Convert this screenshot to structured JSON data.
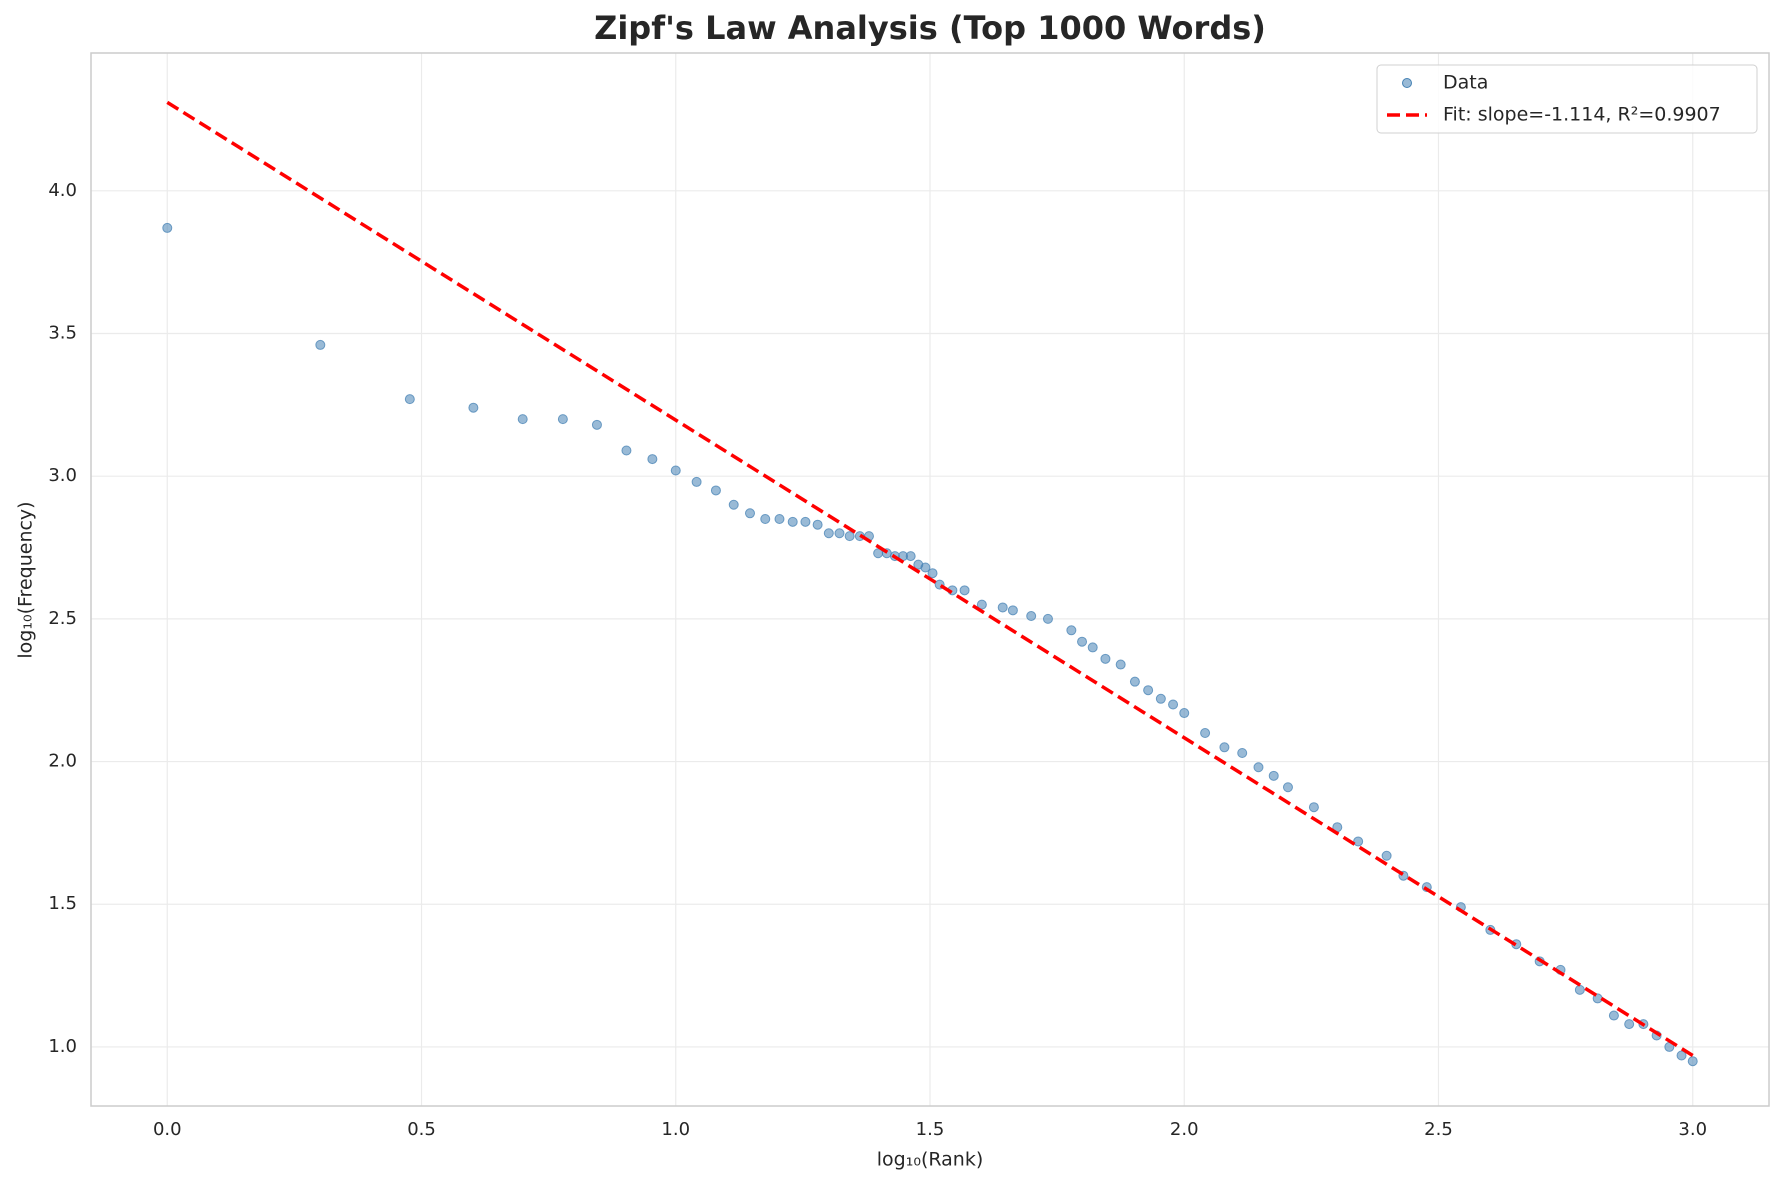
{
  "chart_data": {
    "type": "scatter",
    "title": "Zipf's Law Analysis (Top 1000 Words)",
    "x_label": "log₁₀(Rank)",
    "y_label": "log₁₀(Frequency)",
    "xlim": [
      -0.15,
      3.15
    ],
    "ylim": [
      0.793,
      4.483
    ],
    "xticks": [
      {
        "value": 0,
        "label": "0.0"
      },
      {
        "value": 0.5,
        "label": "0.5"
      },
      {
        "value": 1,
        "label": "1.0"
      },
      {
        "value": 1.5,
        "label": "1.5"
      },
      {
        "value": 2,
        "label": "2.0"
      },
      {
        "value": 2.5,
        "label": "2.5"
      },
      {
        "value": 3,
        "label": "3.0"
      }
    ],
    "yticks": [
      {
        "value": 1,
        "label": "1.0"
      },
      {
        "value": 1.5,
        "label": "1.5"
      },
      {
        "value": 2,
        "label": "2.0"
      },
      {
        "value": 2.5,
        "label": "2.5"
      },
      {
        "value": 3,
        "label": "3.0"
      },
      {
        "value": 3.5,
        "label": "3.5"
      },
      {
        "value": 4,
        "label": "4.0"
      }
    ],
    "grid": true,
    "legend": "upper right",
    "series": [
      {
        "name": "Data",
        "type": "scatter",
        "color": "#4682b4",
        "x": [
          0,
          0.301,
          0.477,
          0.602,
          0.699,
          0.778,
          0.845,
          0.903,
          0.954,
          1.0,
          1.041,
          1.079,
          1.114,
          1.146,
          1.176,
          1.204,
          1.23,
          1.255,
          1.279,
          1.301,
          1.322,
          1.342,
          1.362,
          1.38,
          1.398,
          1.415,
          1.431,
          1.447,
          1.462,
          1.477,
          1.491,
          1.505,
          1.519,
          1.544,
          1.568,
          1.602,
          1.643,
          1.663,
          1.699,
          1.732,
          1.778,
          1.799,
          1.82,
          1.845,
          1.875,
          1.903,
          1.929,
          1.954,
          1.978,
          2.0,
          2.041,
          2.079,
          2.114,
          2.146,
          2.176,
          2.204,
          2.255,
          2.301,
          2.342,
          2.398,
          2.431,
          2.477,
          2.544,
          2.602,
          2.653,
          2.699,
          2.74,
          2.778,
          2.813,
          2.845,
          2.875,
          2.903,
          2.929,
          2.954,
          2.978,
          3.0
        ],
        "values": [
          3.87,
          3.46,
          3.27,
          3.24,
          3.2,
          3.2,
          3.18,
          3.09,
          3.06,
          3.02,
          2.98,
          2.95,
          2.9,
          2.87,
          2.85,
          2.85,
          2.84,
          2.84,
          2.83,
          2.8,
          2.8,
          2.79,
          2.79,
          2.79,
          2.73,
          2.73,
          2.72,
          2.72,
          2.72,
          2.69,
          2.68,
          2.66,
          2.62,
          2.6,
          2.6,
          2.55,
          2.54,
          2.53,
          2.51,
          2.5,
          2.46,
          2.42,
          2.4,
          2.36,
          2.34,
          2.28,
          2.25,
          2.22,
          2.2,
          2.17,
          2.1,
          2.05,
          2.03,
          1.98,
          1.95,
          1.91,
          1.84,
          1.77,
          1.72,
          1.67,
          1.6,
          1.56,
          1.49,
          1.41,
          1.36,
          1.3,
          1.27,
          1.2,
          1.17,
          1.11,
          1.08,
          1.08,
          1.04,
          1.0,
          0.97,
          0.95
        ]
      },
      {
        "name": "Fit: slope=-1.114, R²=0.9907",
        "type": "line",
        "color": "#ff0000",
        "x": [
          0,
          3
        ],
        "values": [
          4.31,
          0.97
        ]
      }
    ]
  }
}
